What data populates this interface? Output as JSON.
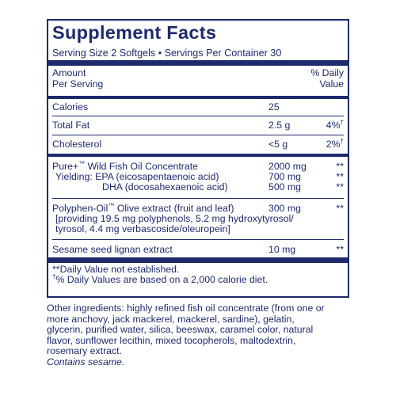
{
  "panel": {
    "title": "Supplement Facts",
    "serving": "Serving Size 2 Softgels • Servings Per Container 30",
    "header": {
      "amount_line1": "Amount",
      "amount_line2": "Per Serving",
      "dv_line1": "% Daily",
      "dv_line2": "Value"
    },
    "rows": {
      "calories": {
        "name": "Calories",
        "amount": "25",
        "dv": ""
      },
      "total_fat": {
        "name": "Total Fat",
        "amount": "2.5 g",
        "dv": "4%",
        "dv_mark": "†"
      },
      "cholesterol": {
        "name": "Cholesterol",
        "amount": "<5 g",
        "dv": "2%",
        "dv_mark": "†"
      },
      "fish_oil": {
        "name_a": "Pure+",
        "name_tm": "™",
        "name_b": " Wild Fish Oil Concentrate",
        "amount": "2000 mg",
        "dv": "**"
      },
      "epa": {
        "name": "Yielding: EPA (eicosapentaenoic acid)",
        "amount": "700 mg",
        "dv": "**"
      },
      "dha": {
        "name": "DHA (docosahexaenoic acid)",
        "amount": "500 mg",
        "dv": "**"
      },
      "polyphen": {
        "name_a": "Polyphen-Oil",
        "name_tm": "™",
        "name_b": " Olive extract (fruit and leaf)",
        "amount": "300 mg",
        "dv": "**",
        "detail_1": "[providing 19.5 mg polyphenols, 5.2 mg hydroxytyrosol/",
        "detail_2": "tyrosol, 4.4 mg verbascoside/oleuropein]"
      },
      "sesame": {
        "name": "Sesame seed lignan extract",
        "amount": "10 mg",
        "dv": "**"
      }
    },
    "footnotes": {
      "dv_not_established": "**Daily Value not established.",
      "dv_mark": "†",
      "dv_basis": "% Daily Values are based on a 2,000 calorie diet."
    }
  },
  "other_ingredients": {
    "line1": "Other ingredients: highly refined fish oil concentrate (from one or",
    "line2": "more anchovy, jack mackerel, mackerel, sardine), gelatin,",
    "line3": "glycerin, purified water, silica, beeswax, caramel color, natural",
    "line4": "flavor, sunflower lecithin, mixed tocopherols, maltodextrin,",
    "line5": "rosemary extract.",
    "allergen": "Contains sesame."
  },
  "colors": {
    "ink": "#1e2a6b",
    "background": "#ffffff"
  }
}
